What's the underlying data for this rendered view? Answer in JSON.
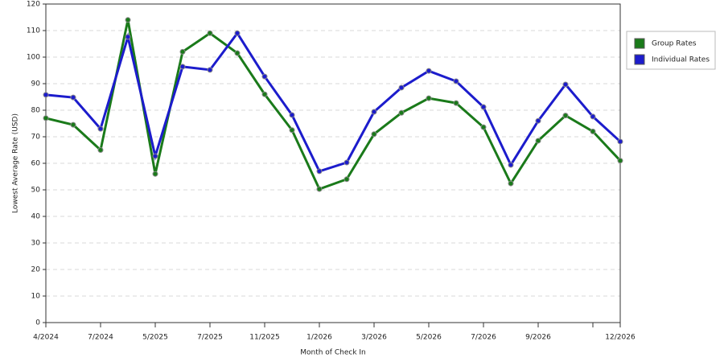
{
  "chart_data": {
    "type": "line",
    "x_label": "Month of Check In",
    "y_label": "Lowest Average Rate (USD)",
    "categories": [
      "4/2024",
      null,
      "7/2024",
      null,
      "5/2025",
      null,
      "7/2025",
      null,
      "11/2025",
      null,
      "1/2026",
      null,
      "3/2026",
      null,
      "5/2026",
      null,
      "7/2026",
      null,
      "9/2026",
      null,
      null,
      "12/2026"
    ],
    "series": [
      {
        "name": "Group Rates",
        "color": "#1a7a1a",
        "values": [
          77,
          74.5,
          65,
          114,
          56,
          102,
          109,
          101.5,
          86,
          72.5,
          50.3,
          54,
          71,
          79,
          84.5,
          82.7,
          73.6,
          52.4,
          68.5,
          78,
          72,
          61
        ]
      },
      {
        "name": "Individual Rates",
        "color": "#1c1ccc",
        "values": [
          85.8,
          84.8,
          73,
          107.6,
          62.7,
          96.4,
          95.2,
          109,
          92.7,
          78.2,
          57,
          60.3,
          79.4,
          88.5,
          94.8,
          90.9,
          81.2,
          59.4,
          76,
          89.7,
          77.6,
          68.2
        ]
      }
    ],
    "ylim": [
      0,
      120
    ],
    "yticks": [
      0,
      10,
      20,
      30,
      40,
      50,
      60,
      70,
      80,
      90,
      100,
      110,
      120
    ],
    "grid": true,
    "legend": "right"
  }
}
